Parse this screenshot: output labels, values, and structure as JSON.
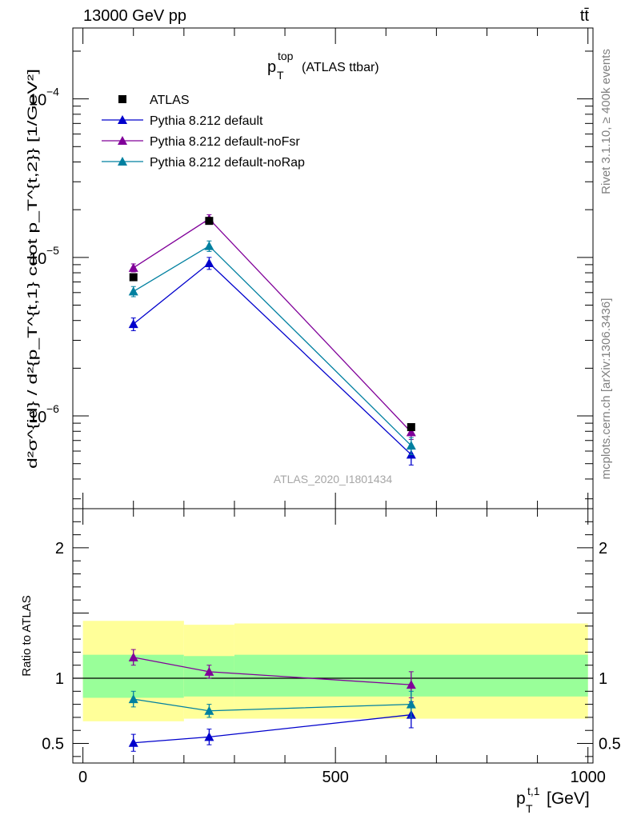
{
  "header": {
    "energy_label": "13000 GeV pp",
    "process_label": "tt̄"
  },
  "side": {
    "rivet_label": "Rivet 3.1.10, ≥ 400k events",
    "source_label": "mcplots.cern.ch [arXiv:1306.3436]"
  },
  "chart_data": {
    "type": "line",
    "title": {
      "main": "p",
      "sub": "T",
      "sup": "top",
      "suffix": "(ATLAS ttbar)"
    },
    "analysis_label": "ATLAS_2020_I1801434",
    "x_axis": {
      "label_main": "p",
      "label_sub": "T",
      "label_sup": "t,1",
      "label_unit": "[GeV]",
      "range": [
        -20,
        1010
      ],
      "ticks": [
        {
          "value": 0,
          "label": "0"
        },
        {
          "value": 500,
          "label": "500"
        },
        {
          "value": 1000,
          "label": "1000"
        }
      ]
    },
    "main_panel": {
      "y_scale": "log",
      "y_range": [
        2.6e-07,
        0.00028
      ],
      "y_ticks": [
        {
          "value": 1e-06,
          "base": "10",
          "exp": "−6"
        },
        {
          "value": 1e-05,
          "base": "10",
          "exp": "−5"
        },
        {
          "value": 0.0001,
          "base": "10",
          "exp": "−4"
        }
      ],
      "y_label_text": "d²σ^{id} / d²{p_T^{t,1} cdot p_T^{t,2}} [1/GeV²]",
      "y_label_unit": "[1/GeV",
      "bins": [
        {
          "x": 100,
          "lo": 0,
          "hi": 200
        },
        {
          "x": 250,
          "lo": 200,
          "hi": 300
        },
        {
          "x": 650,
          "lo": 300,
          "hi": 1000
        }
      ],
      "series": [
        {
          "name": "ATLAS",
          "color": "#000000",
          "marker": "square",
          "values": [
            7.5e-06,
            1.7e-05,
            8.5e-07
          ],
          "errors": [
            0,
            0,
            0
          ]
        },
        {
          "name": "Pythia 8.212 default",
          "color": "#0000cc",
          "marker": "triangle",
          "values": [
            3.8e-06,
            9.2e-06,
            5.7e-07
          ],
          "errors": [
            3.5e-07,
            8e-07,
            8e-08
          ]
        },
        {
          "name": "Pythia 8.212 default-noFsr",
          "color": "#800099",
          "marker": "triangle",
          "values": [
            8.6e-06,
            1.75e-05,
            7.9e-07
          ],
          "errors": [
            5e-07,
            1.1e-06,
            8e-08
          ]
        },
        {
          "name": "Pythia 8.212 default-noRap",
          "color": "#0080a0",
          "marker": "triangle",
          "values": [
            6.1e-06,
            1.18e-05,
            6.5e-07
          ],
          "errors": [
            4.5e-07,
            9e-07,
            8e-08
          ]
        }
      ]
    },
    "ratio_panel": {
      "y_label": "Ratio to ATLAS",
      "y_range": [
        0.35,
        2.3
      ],
      "y_ticks": [
        {
          "value": 0.5,
          "label": "0.5"
        },
        {
          "value": 1,
          "label": "1"
        },
        {
          "value": 2,
          "label": "2"
        }
      ],
      "bands": [
        {
          "lo": 0,
          "hi": 200,
          "yellow": [
            0.67,
            1.44
          ],
          "green": [
            0.85,
            1.18
          ]
        },
        {
          "lo": 200,
          "hi": 300,
          "yellow": [
            0.69,
            1.41
          ],
          "green": [
            0.86,
            1.17
          ]
        },
        {
          "lo": 300,
          "hi": 1000,
          "yellow": [
            0.69,
            1.42
          ],
          "green": [
            0.86,
            1.18
          ]
        }
      ],
      "series": [
        {
          "name": "Pythia 8.212 default",
          "color": "#0000cc",
          "values": [
            0.505,
            0.55,
            0.72
          ],
          "errors": [
            0.065,
            0.06,
            0.1
          ]
        },
        {
          "name": "Pythia 8.212 default-noFsr",
          "color": "#800099",
          "values": [
            1.16,
            1.05,
            0.95
          ],
          "errors": [
            0.06,
            0.05,
            0.1
          ]
        },
        {
          "name": "Pythia 8.212 default-noRap",
          "color": "#0080a0",
          "values": [
            0.84,
            0.75,
            0.8
          ],
          "errors": [
            0.06,
            0.05,
            0.1
          ]
        }
      ]
    },
    "legend": {
      "placement": "top-left",
      "entries": [
        "ATLAS",
        "Pythia 8.212 default",
        "Pythia 8.212 default-noFsr",
        "Pythia 8.212 default-noRap"
      ]
    }
  }
}
